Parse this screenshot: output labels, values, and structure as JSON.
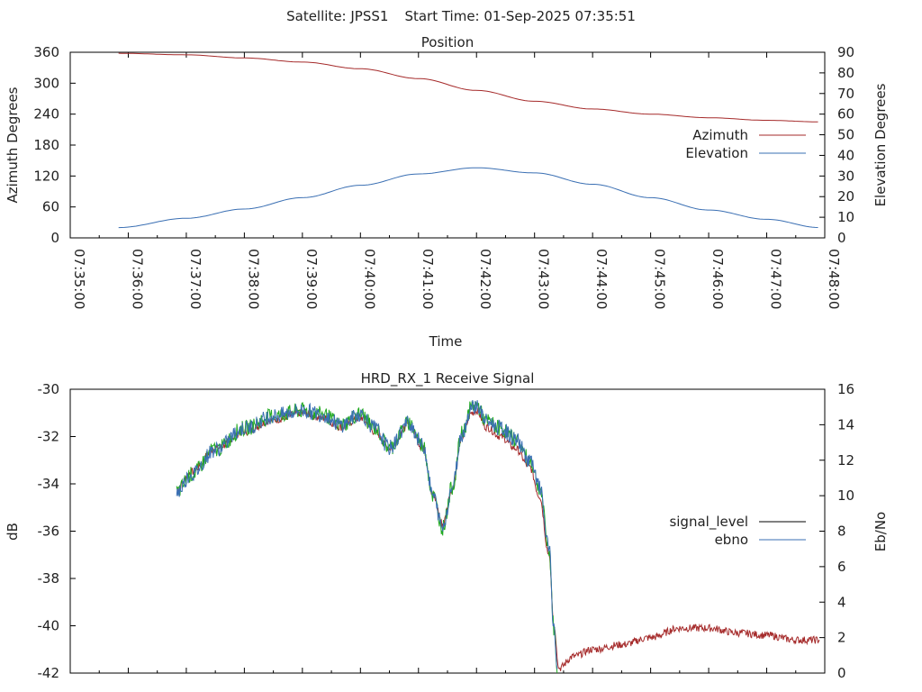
{
  "header": {
    "satellite_label": "Satellite: JPSS1",
    "start_time_label": "Start Time: 01-Sep-2025 07:35:51"
  },
  "colors": {
    "azimuth": "#a52a2a",
    "elevation": "#3a6fb3",
    "signal_level": "#000000",
    "signal_level_visible": "#a52a2a",
    "ebno": "#3a6fb3",
    "ebno_green": "#22aa22"
  },
  "chart_data": [
    {
      "type": "line",
      "title": "Position",
      "xlabel": "Time",
      "ylabel": "Azimuth Degrees",
      "y2label": "Elevation Degrees",
      "ylim": [
        0,
        360
      ],
      "y2lim": [
        0,
        90
      ],
      "yticks": [
        "0",
        "60",
        "120",
        "180",
        "240",
        "300",
        "360"
      ],
      "y2ticks": [
        "0",
        "10",
        "20",
        "30",
        "40",
        "50",
        "60",
        "70",
        "80",
        "90"
      ],
      "xticks": [
        "07:35:00",
        "07:36:00",
        "07:37:00",
        "07:38:00",
        "07:39:00",
        "07:40:00",
        "07:41:00",
        "07:42:00",
        "07:43:00",
        "07:44:00",
        "07:45:00",
        "07:46:00",
        "07:47:00",
        "07:48:00"
      ],
      "legend_position": "right",
      "series": [
        {
          "name": "Azimuth",
          "axis": "y",
          "x": [
            "07:35:50",
            "07:37:00",
            "07:38:00",
            "07:39:00",
            "07:40:00",
            "07:41:00",
            "07:42:00",
            "07:43:00",
            "07:44:00",
            "07:45:00",
            "07:46:00",
            "07:47:00",
            "07:47:55"
          ],
          "values": [
            358,
            355,
            349,
            341,
            328,
            309,
            286,
            265,
            250,
            240,
            233,
            228,
            225
          ]
        },
        {
          "name": "Elevation",
          "axis": "y2",
          "x": [
            "07:35:50",
            "07:37:00",
            "07:38:00",
            "07:39:00",
            "07:40:00",
            "07:41:00",
            "07:42:00",
            "07:43:00",
            "07:44:00",
            "07:45:00",
            "07:46:00",
            "07:47:00",
            "07:47:55"
          ],
          "values": [
            5,
            9.5,
            14,
            19.5,
            25.5,
            31,
            34,
            31.5,
            26,
            19.5,
            13.5,
            9,
            5
          ]
        }
      ]
    },
    {
      "type": "line",
      "title": "HRD_RX_1 Receive Signal",
      "ylabel": "dB",
      "y2label": "Eb/No",
      "ylim": [
        -42,
        -30
      ],
      "y2lim": [
        0,
        16
      ],
      "yticks": [
        "-42",
        "-40",
        "-38",
        "-36",
        "-34",
        "-32",
        "-30"
      ],
      "y2ticks": [
        "0",
        "2",
        "4",
        "6",
        "8",
        "10",
        "12",
        "14",
        "16"
      ],
      "legend_position": "right",
      "series": [
        {
          "name": "signal_level",
          "axis": "y",
          "x": [
            "07:36:50",
            "07:37:05",
            "07:37:30",
            "07:38:00",
            "07:38:30",
            "07:39:00",
            "07:39:20",
            "07:39:40",
            "07:40:00",
            "07:40:15",
            "07:40:30",
            "07:40:50",
            "07:41:05",
            "07:41:15",
            "07:41:25",
            "07:41:35",
            "07:41:45",
            "07:41:55",
            "07:42:00",
            "07:42:10",
            "07:42:25",
            "07:42:40",
            "07:42:55",
            "07:43:05",
            "07:43:15",
            "07:43:20",
            "07:43:25",
            "07:43:40",
            "07:44:00",
            "07:44:30",
            "07:45:00",
            "07:45:30",
            "07:46:00",
            "07:46:30",
            "07:47:00",
            "07:47:30",
            "07:47:55"
          ],
          "values": [
            -34.2,
            -33.5,
            -32.5,
            -31.8,
            -31.3,
            -31.0,
            -31.2,
            -31.6,
            -31.2,
            -31.8,
            -32.5,
            -31.5,
            -32.5,
            -34.5,
            -35.7,
            -34.2,
            -32.0,
            -31.0,
            -30.9,
            -31.6,
            -32.0,
            -32.5,
            -33.3,
            -34.5,
            -37.0,
            -40.0,
            -41.8,
            -41.3,
            -41.0,
            -40.8,
            -40.5,
            -40.1,
            -40.1,
            -40.3,
            -40.4,
            -40.6,
            -40.6
          ]
        },
        {
          "name": "ebno",
          "axis": "y2",
          "x": [
            "07:36:50",
            "07:37:05",
            "07:37:30",
            "07:38:00",
            "07:38:30",
            "07:39:00",
            "07:39:20",
            "07:39:40",
            "07:40:00",
            "07:40:15",
            "07:40:30",
            "07:40:50",
            "07:41:05",
            "07:41:15",
            "07:41:25",
            "07:41:35",
            "07:41:45",
            "07:41:55",
            "07:42:00",
            "07:42:10",
            "07:42:25",
            "07:42:40",
            "07:42:55",
            "07:43:05",
            "07:43:15",
            "07:43:20",
            "07:43:24"
          ],
          "values": [
            10.2,
            11.2,
            12.6,
            13.8,
            14.5,
            14.8,
            14.6,
            14.0,
            14.6,
            13.8,
            12.7,
            14.1,
            12.8,
            10.0,
            8.2,
            10.5,
            13.5,
            15.0,
            15.1,
            14.2,
            13.8,
            13.2,
            12.0,
            10.5,
            7.0,
            2.5,
            0
          ]
        }
      ]
    }
  ]
}
